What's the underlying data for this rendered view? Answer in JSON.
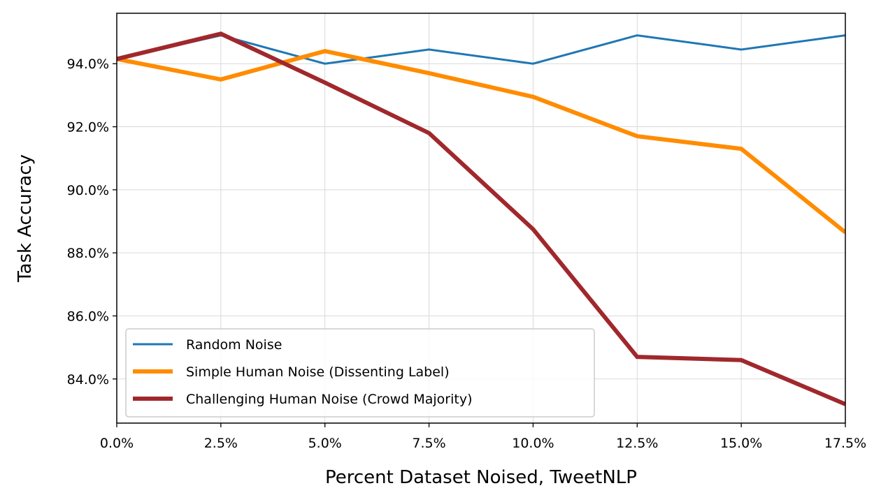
{
  "chart_data": {
    "type": "line",
    "xlabel": "Percent Dataset Noised, TweetNLP",
    "ylabel": "Task Accuracy",
    "x": [
      0.0,
      2.5,
      5.0,
      7.5,
      10.0,
      12.5,
      15.0,
      17.5
    ],
    "xlim": [
      0.0,
      17.5
    ],
    "ylim": [
      82.6,
      95.6
    ],
    "x_ticks": [
      0.0,
      2.5,
      5.0,
      7.5,
      10.0,
      12.5,
      15.0,
      17.5
    ],
    "x_tick_labels": [
      "0.0%",
      "2.5%",
      "5.0%",
      "7.5%",
      "10.0%",
      "12.5%",
      "15.0%",
      "17.5%"
    ],
    "y_ticks": [
      84,
      86,
      88,
      90,
      92,
      94
    ],
    "y_tick_labels": [
      "84.0%",
      "86.0%",
      "88.0%",
      "90.0%",
      "92.0%",
      "94.0%"
    ],
    "grid": true,
    "legend_position": "lower-left",
    "series": [
      {
        "name": "Random Noise",
        "color": "#1f77b4",
        "values": [
          94.15,
          94.9,
          94.0,
          94.45,
          94.0,
          94.9,
          94.45,
          94.9
        ]
      },
      {
        "name": "Simple Human Noise (Dissenting Label)",
        "color": "#ff8c00",
        "values": [
          94.15,
          93.5,
          94.4,
          93.7,
          92.95,
          91.7,
          91.3,
          88.65
        ]
      },
      {
        "name": "Challenging Human Noise (Crowd Majority)",
        "color": "#a0282c",
        "values": [
          94.15,
          94.95,
          93.4,
          91.8,
          88.75,
          84.7,
          84.6,
          83.2
        ]
      }
    ]
  }
}
